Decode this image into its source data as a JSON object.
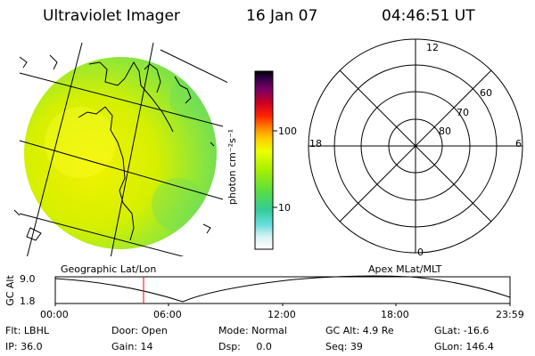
{
  "header": {
    "title": "Ultraviolet Imager",
    "date": "16 Jan 07",
    "time": "04:46:51 UT"
  },
  "colors": {
    "scale": [
      "#ffffff",
      "#e6f5f5",
      "#8fe6e6",
      "#33cccc",
      "#55dd55",
      "#88ee22",
      "#ccff00",
      "#ffee00",
      "#ffaa00",
      "#ff5500",
      "#dd0000",
      "#990033",
      "#660066",
      "#330044",
      "#000000"
    ]
  },
  "colorbar": {
    "unit_label": "photon cm⁻²s⁻¹",
    "ticks": [
      "100",
      "10"
    ]
  },
  "polar": {
    "mlt_labels": {
      "top": "12",
      "bottom": "0",
      "left": "18",
      "right": "6"
    },
    "lat_labels": [
      "60",
      "70",
      "80"
    ]
  },
  "captions": {
    "left": "Geographic Lat/Lon",
    "right": "Apex MLat/MLT"
  },
  "altitude_plot": {
    "axis_label": "GC Alt",
    "y_ticks": [
      "9.0",
      "1.8"
    ],
    "x_ticks": [
      "00:00",
      "06:00",
      "12:00",
      "18:00",
      "23:59"
    ],
    "marker_time": "04:46:51"
  },
  "footer": {
    "flt": "Flt: LBHL",
    "door": "Door: Open",
    "mode": "Mode: Normal",
    "gc_alt": "GC Alt: 4.9 Re",
    "glat": "GLat: -16.6",
    "ip": "IP: 36.0",
    "gain": "Gain: 14",
    "dsp": "Dsp:     0.0",
    "seq": "Seq: 39",
    "glon": "GLon: 146.4"
  }
}
